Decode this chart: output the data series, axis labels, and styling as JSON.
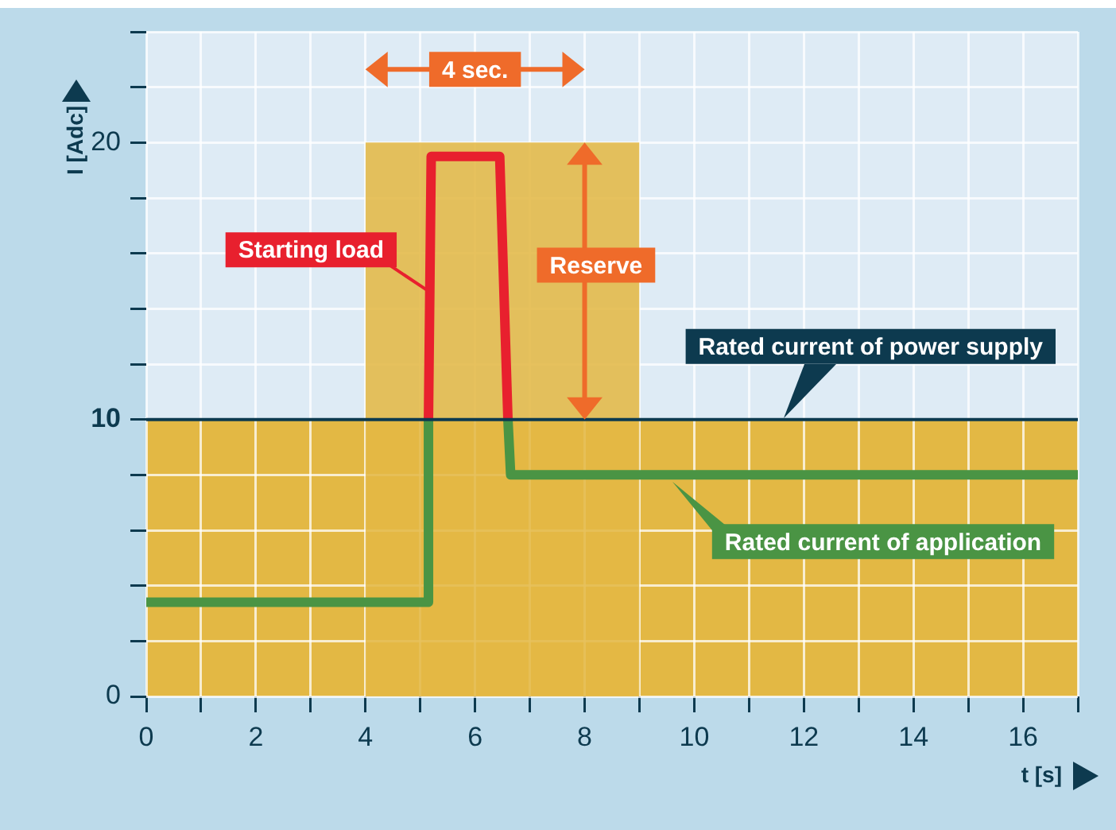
{
  "chart_data": {
    "type": "line",
    "xlabel": "t [s]",
    "ylabel": "I [Adc]",
    "xlim": [
      0,
      17
    ],
    "xticks": [
      0,
      {
        "value": 1,
        "label": null
      },
      2,
      {
        "value": 3,
        "label": null
      },
      4,
      {
        "value": 5,
        "label": null
      },
      6,
      {
        "value": 7,
        "label": null
      },
      8,
      {
        "value": 9,
        "label": null
      },
      10,
      {
        "value": 11,
        "label": null
      },
      12,
      {
        "value": 13,
        "label": null
      },
      14,
      {
        "value": 15,
        "label": null
      },
      16,
      {
        "value": 17,
        "label": null
      }
    ],
    "ylim": [
      0,
      24
    ],
    "yticks": [
      0,
      {
        "value": 2,
        "label": null
      },
      {
        "value": 4,
        "label": null
      },
      {
        "value": 6,
        "label": null
      },
      {
        "value": 8,
        "label": null
      },
      10,
      {
        "value": 12,
        "label": null
      },
      {
        "value": 14,
        "label": null
      },
      {
        "value": 16,
        "label": null
      },
      {
        "value": 18,
        "label": null
      },
      20,
      {
        "value": 22,
        "label": null
      },
      {
        "value": 24,
        "label": null
      }
    ],
    "grid": true,
    "legend": false,
    "series": [
      {
        "type": "area",
        "color": "#e3b844",
        "x": [
          4,
          9
        ],
        "values": [
          20,
          20
        ]
      },
      {
        "name": "Rated current of application",
        "color": "#4a9444",
        "x": [
          0,
          5.15,
          5.15,
          5.9,
          6.6,
          6.65,
          17
        ],
        "values": [
          3.4,
          3.4,
          10,
          null,
          10,
          8,
          8
        ]
      },
      {
        "name": "Starting load",
        "color": "#e8202e",
        "x": [
          5.15,
          5.2,
          6.45,
          6.6
        ],
        "values": [
          10,
          19.5,
          19.5,
          10
        ]
      }
    ],
    "bands": [
      {
        "axis": "y",
        "from": 0,
        "to": 10,
        "color": "#e3b844"
      }
    ],
    "ref_lines": [
      {
        "axis": "y",
        "value": 10,
        "label": "Rated current of power supply",
        "color": "#0d3a4f"
      }
    ],
    "annotations": [
      "4 sec.",
      "Reserve"
    ]
  }
}
